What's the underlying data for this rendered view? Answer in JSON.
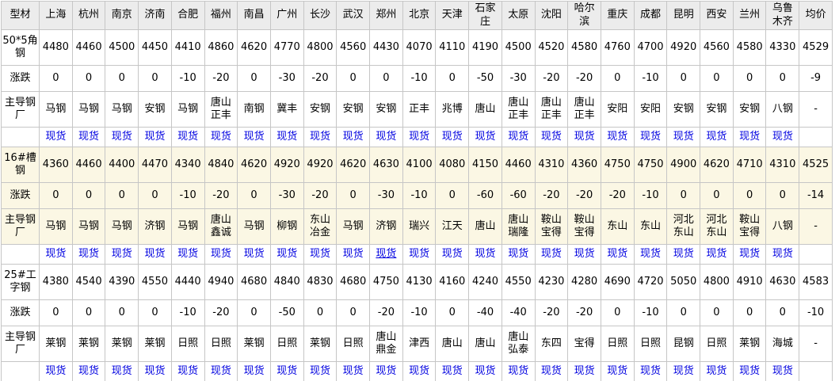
{
  "colors": {
    "header_bg": "#ececec",
    "highlight_bg": "#fbf7e4",
    "grid": "#c6c6c6",
    "link_blue": "#0000e0",
    "text": "#000000"
  },
  "table": {
    "header": [
      "型材",
      "上海",
      "杭州",
      "南京",
      "济南",
      "合肥",
      "福州",
      "南昌",
      "广州",
      "长沙",
      "武汉",
      "郑州",
      "北京",
      "天津",
      "石家庄",
      "太原",
      "沈阳",
      "哈尔滨",
      "重庆",
      "成都",
      "昆明",
      "西安",
      "兰州",
      "乌鲁木齐",
      "均价"
    ],
    "row_labels": {
      "change": "涨跌",
      "mill": "主导钢厂"
    },
    "spot_label": "现货",
    "spot_underlined": {
      "section_index": 1,
      "column_index": 10
    },
    "sections": [
      {
        "product": "50*5角钢",
        "highlighted": false,
        "prices": [
          "4480",
          "4460",
          "4500",
          "4450",
          "4410",
          "4860",
          "4620",
          "4770",
          "4800",
          "4560",
          "4430",
          "4070",
          "4110",
          "4190",
          "4500",
          "4520",
          "4580",
          "4760",
          "4700",
          "4920",
          "4560",
          "4580",
          "4330",
          "4529"
        ],
        "changes": [
          "0",
          "0",
          "0",
          "0",
          "-10",
          "-20",
          "0",
          "-30",
          "-20",
          "0",
          "0",
          "-10",
          "0",
          "-50",
          "-30",
          "-20",
          "-20",
          "0",
          "-10",
          "0",
          "0",
          "0",
          "0",
          "-9"
        ],
        "mills": [
          "马钢",
          "马钢",
          "马钢",
          "安钢",
          "马钢",
          "唐山正丰",
          "南钢",
          "冀丰",
          "安钢",
          "安钢",
          "安钢",
          "正丰",
          "兆博",
          "唐山",
          "唐山正丰",
          "唐山正丰",
          "唐山正丰",
          "安阳",
          "安阳",
          "安钢",
          "安钢",
          "安钢",
          "八钢",
          "-"
        ]
      },
      {
        "product": "16#槽钢",
        "highlighted": true,
        "prices": [
          "4360",
          "4460",
          "4400",
          "4470",
          "4340",
          "4840",
          "4620",
          "4920",
          "4920",
          "4620",
          "4630",
          "4100",
          "4080",
          "4150",
          "4460",
          "4310",
          "4360",
          "4750",
          "4750",
          "4900",
          "4620",
          "4710",
          "4310",
          "4525"
        ],
        "changes": [
          "0",
          "0",
          "0",
          "0",
          "-10",
          "-20",
          "0",
          "-30",
          "-20",
          "0",
          "-30",
          "-10",
          "0",
          "-60",
          "-60",
          "-20",
          "-20",
          "-20",
          "-10",
          "0",
          "0",
          "0",
          "0",
          "-14"
        ],
        "mills": [
          "马钢",
          "马钢",
          "马钢",
          "济钢",
          "马钢",
          "唐山鑫诚",
          "马钢",
          "柳钢",
          "东山冶金",
          "马钢",
          "济钢",
          "瑞兴",
          "江天",
          "唐山",
          "唐山瑞隆",
          "鞍山宝得",
          "鞍山宝得",
          "东山",
          "东山",
          "河北东山",
          "河北东山",
          "鞍山宝得",
          "八钢",
          "-"
        ]
      },
      {
        "product": "25#工字钢",
        "highlighted": false,
        "prices": [
          "4380",
          "4540",
          "4390",
          "4550",
          "4440",
          "4940",
          "4680",
          "4840",
          "4830",
          "4680",
          "4750",
          "4130",
          "4160",
          "4240",
          "4550",
          "4230",
          "4280",
          "4690",
          "4720",
          "5050",
          "4800",
          "4910",
          "4630",
          "4583"
        ],
        "changes": [
          "0",
          "0",
          "0",
          "0",
          "-10",
          "-20",
          "0",
          "-50",
          "0",
          "0",
          "-20",
          "-10",
          "0",
          "-40",
          "-40",
          "-20",
          "-20",
          "0",
          "-10",
          "0",
          "0",
          "0",
          "0",
          "-10"
        ],
        "mills": [
          "莱钢",
          "莱钢",
          "莱钢",
          "莱钢",
          "日照",
          "日照",
          "莱钢",
          "日照",
          "莱钢",
          "日照",
          "唐山鼎金",
          "津西",
          "唐山",
          "唐山",
          "唐山弘泰",
          "东四",
          "宝得",
          "日照",
          "日照",
          "昆钢",
          "日照",
          "莱钢",
          "海城",
          "-"
        ]
      }
    ]
  }
}
